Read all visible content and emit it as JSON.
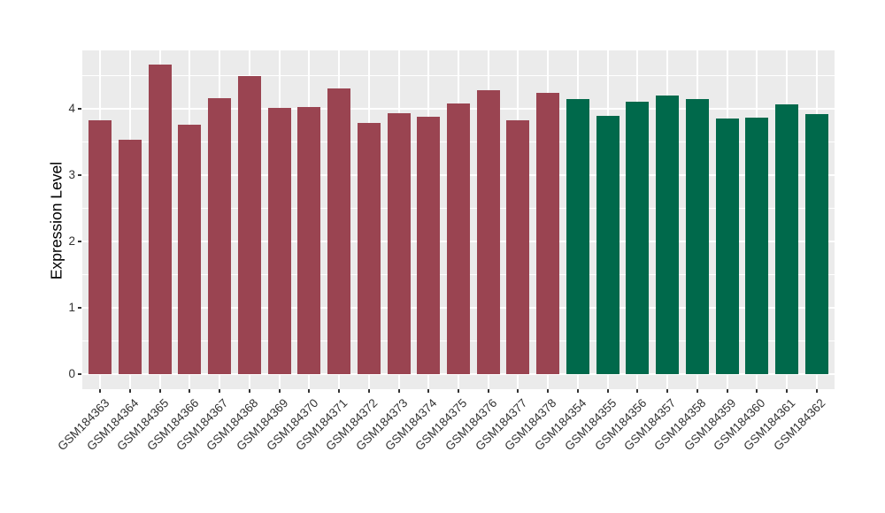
{
  "figure": {
    "kind": "ggplot-style grouped bar chart",
    "colors": {
      "panel_background": "#EBEBEB",
      "gridline": "#FFFFFF",
      "axis_text": "#333333",
      "axis_title": "#000000",
      "tick_mark": "#333333",
      "group_red": "#9A4451",
      "group_green": "#00694B"
    }
  },
  "chart_data": {
    "type": "bar",
    "title": "",
    "xlabel": "",
    "ylabel": "Expression Level",
    "ylim": [
      0,
      4.87
    ],
    "yticks": [
      0,
      1,
      2,
      3,
      4
    ],
    "grid": true,
    "legend": false,
    "categories": [
      "GSM184363",
      "GSM184364",
      "GSM184365",
      "GSM184366",
      "GSM184367",
      "GSM184368",
      "GSM184369",
      "GSM184370",
      "GSM184371",
      "GSM184372",
      "GSM184373",
      "GSM184374",
      "GSM184375",
      "GSM184376",
      "GSM184377",
      "GSM184378",
      "GSM184354",
      "GSM184355",
      "GSM184356",
      "GSM184357",
      "GSM184358",
      "GSM184359",
      "GSM184360",
      "GSM184361",
      "GSM184362"
    ],
    "values": [
      3.83,
      3.54,
      4.67,
      3.76,
      4.16,
      4.5,
      4.02,
      4.03,
      4.31,
      3.79,
      3.94,
      3.88,
      4.08,
      4.28,
      3.83,
      4.24,
      4.15,
      3.9,
      4.11,
      4.2,
      4.15,
      3.85,
      3.87,
      4.07,
      3.92
    ],
    "bar_groups": [
      "group_red",
      "group_red",
      "group_red",
      "group_red",
      "group_red",
      "group_red",
      "group_red",
      "group_red",
      "group_red",
      "group_red",
      "group_red",
      "group_red",
      "group_red",
      "group_red",
      "group_red",
      "group_red",
      "group_green",
      "group_green",
      "group_green",
      "group_green",
      "group_green",
      "group_green",
      "group_green",
      "group_green",
      "group_green"
    ]
  }
}
